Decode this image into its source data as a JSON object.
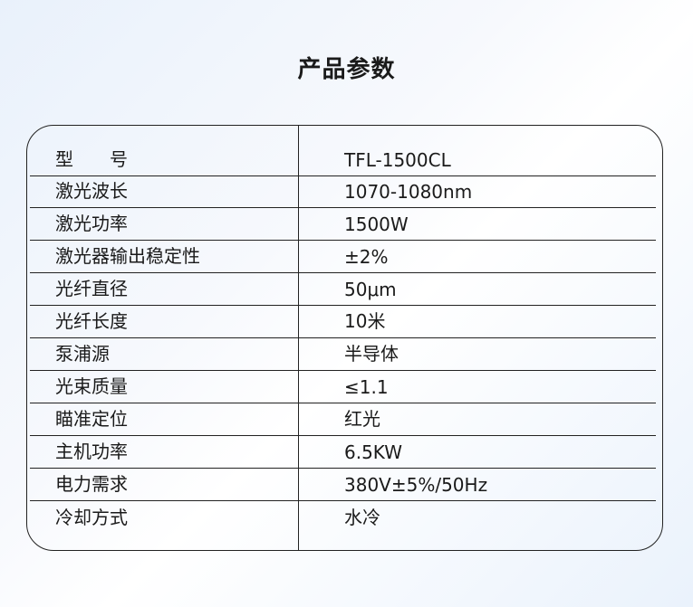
{
  "title": "产品参数",
  "rows": [
    {
      "k": "型　　号",
      "v": "TFL-1500CL"
    },
    {
      "k": "激光波长",
      "v": "1070-1080nm"
    },
    {
      "k": "激光功率",
      "v": "1500W"
    },
    {
      "k": "激光器输出稳定性",
      "v": "±2%"
    },
    {
      "k": "光纤直径",
      "v": "50μm"
    },
    {
      "k": "光纤长度",
      "v": "10米"
    },
    {
      "k": "泵浦源",
      "v": "半导体"
    },
    {
      "k": "光束质量",
      "v": "≤1.1"
    },
    {
      "k": "瞄准定位",
      "v": "红光"
    },
    {
      "k": "主机功率",
      "v": "6.5KW"
    },
    {
      "k": "电力需求",
      "v": "380V±5%/50Hz"
    },
    {
      "k": "冷却方式",
      "v": "水冷"
    }
  ]
}
